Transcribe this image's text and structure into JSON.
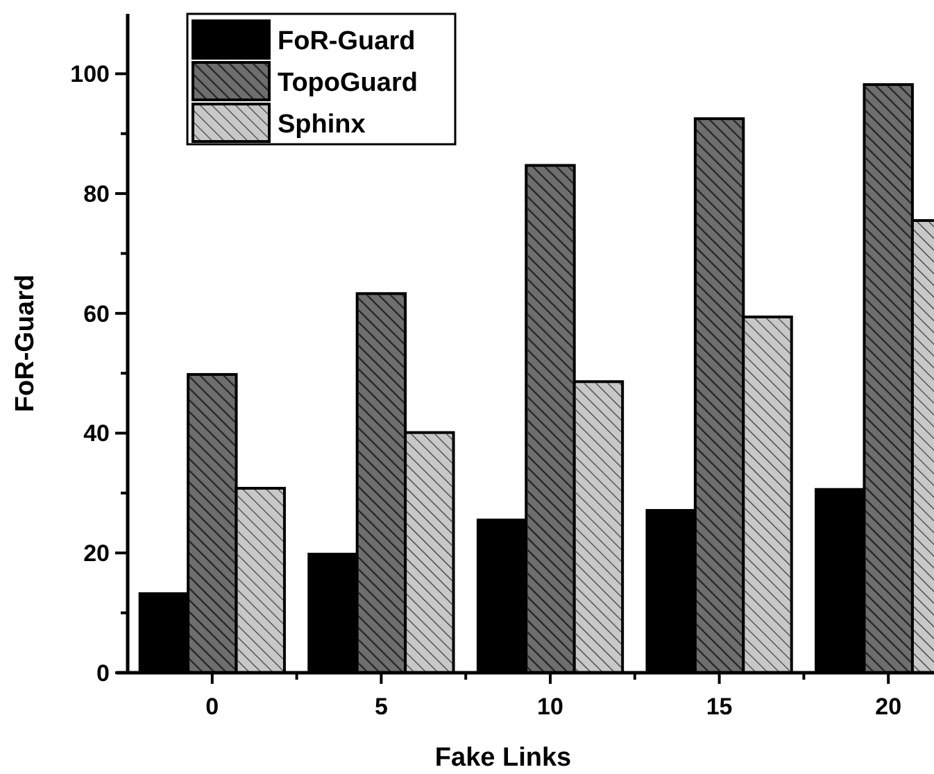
{
  "chart_data": {
    "type": "bar",
    "xlabel": "Fake Links",
    "ylabel": "FoR-Guard",
    "categories": [
      "0",
      "5",
      "10",
      "15",
      "20"
    ],
    "series": [
      {
        "name": "FoR-Guard",
        "color": "#000000",
        "values": [
          13.2,
          19.8,
          25.5,
          27.1,
          30.6
        ]
      },
      {
        "name": "TopoGuard",
        "color": "#6e6e6e",
        "values": [
          49.8,
          63.3,
          84.7,
          92.5,
          98.2
        ]
      },
      {
        "name": "Sphinx",
        "color": "#c8c8c8",
        "values": [
          30.8,
          40.1,
          48.6,
          59.4,
          75.5
        ]
      }
    ],
    "ylim": [
      0,
      110
    ],
    "yticks": [
      0,
      {
        "value": 10,
        "label": null
      },
      20,
      {
        "value": 30,
        "label": null
      },
      40,
      {
        "value": 50,
        "label": null
      },
      60,
      {
        "value": 70,
        "label": null
      },
      80,
      {
        "value": 90,
        "label": null
      },
      100
    ],
    "legend": "top left",
    "grid": false
  }
}
